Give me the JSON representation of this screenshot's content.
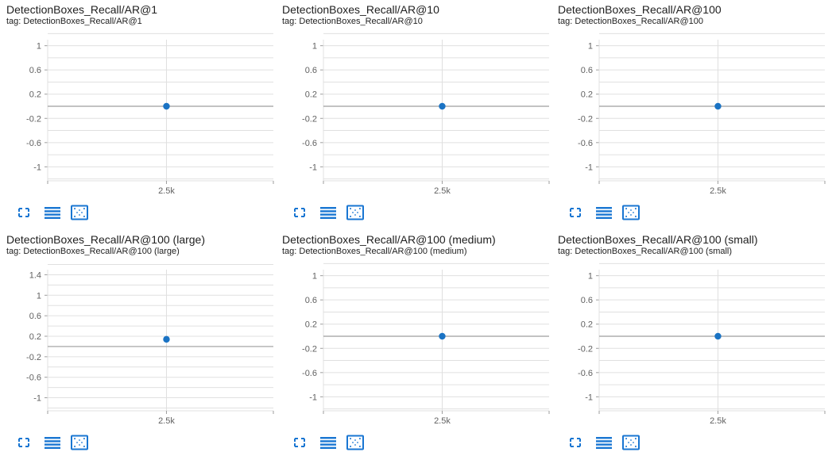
{
  "colors": {
    "grid": "#e0e0e0",
    "zero_line": "#9e9e9e",
    "axis_text": "#616161",
    "point": "#1a73c4",
    "icon": "#1976d2"
  },
  "toolbar": {
    "icons": [
      "fullscreen-icon",
      "data-table-icon",
      "fit-domain-icon"
    ]
  },
  "cards": [
    {
      "title": "DetectionBoxes_Recall/AR@1",
      "tag": "tag: DetectionBoxes_Recall/AR@1"
    },
    {
      "title": "DetectionBoxes_Recall/AR@10",
      "tag": "tag: DetectionBoxes_Recall/AR@10"
    },
    {
      "title": "DetectionBoxes_Recall/AR@100",
      "tag": "tag: DetectionBoxes_Recall/AR@100"
    },
    {
      "title": "DetectionBoxes_Recall/AR@100 (large)",
      "tag": "tag: DetectionBoxes_Recall/AR@100 (large)"
    },
    {
      "title": "DetectionBoxes_Recall/AR@100 (medium)",
      "tag": "tag: DetectionBoxes_Recall/AR@100 (medium)"
    },
    {
      "title": "DetectionBoxes_Recall/AR@100 (small)",
      "tag": "tag: DetectionBoxes_Recall/AR@100 (small)"
    }
  ],
  "chart_data": [
    {
      "type": "scatter",
      "title": "DetectionBoxes_Recall/AR@1",
      "xlabel": "",
      "ylabel": "",
      "x_ticks": [
        "2.5k"
      ],
      "y_ticks": [
        1,
        0.6,
        0.2,
        -0.2,
        -0.6,
        -1
      ],
      "y_tick_labels": [
        "1",
        "0.6",
        "0.2",
        "-0.2",
        "-0.6",
        "-1"
      ],
      "ylim": [
        -1.1,
        1.1
      ],
      "grid": true,
      "points": [
        {
          "x": 2500,
          "y": 0
        }
      ]
    },
    {
      "type": "scatter",
      "title": "DetectionBoxes_Recall/AR@10",
      "xlabel": "",
      "ylabel": "",
      "x_ticks": [
        "2.5k"
      ],
      "y_ticks": [
        1,
        0.6,
        0.2,
        -0.2,
        -0.6,
        -1
      ],
      "y_tick_labels": [
        "1",
        "0.6",
        "0.2",
        "-0.2",
        "-0.6",
        "-1"
      ],
      "ylim": [
        -1.1,
        1.1
      ],
      "grid": true,
      "points": [
        {
          "x": 2500,
          "y": 0
        }
      ]
    },
    {
      "type": "scatter",
      "title": "DetectionBoxes_Recall/AR@100",
      "xlabel": "",
      "ylabel": "",
      "x_ticks": [
        "2.5k"
      ],
      "y_ticks": [
        1,
        0.6,
        0.2,
        -0.2,
        -0.6,
        -1
      ],
      "y_tick_labels": [
        "1",
        "0.6",
        "0.2",
        "-0.2",
        "-0.6",
        "-1"
      ],
      "ylim": [
        -1.1,
        1.1
      ],
      "grid": true,
      "points": [
        {
          "x": 2500,
          "y": 0
        }
      ]
    },
    {
      "type": "scatter",
      "title": "DetectionBoxes_Recall/AR@100 (large)",
      "xlabel": "",
      "ylabel": "",
      "x_ticks": [
        "2.5k"
      ],
      "y_ticks": [
        1.4,
        1,
        0.6,
        0.2,
        -0.2,
        -0.6,
        -1
      ],
      "y_tick_labels": [
        "1.4",
        "1",
        "0.6",
        "0.2",
        "-0.2",
        "-0.6",
        "-1"
      ],
      "ylim": [
        -1.1,
        1.5
      ],
      "grid": true,
      "points": [
        {
          "x": 2500,
          "y": 0.14
        }
      ]
    },
    {
      "type": "scatter",
      "title": "DetectionBoxes_Recall/AR@100 (medium)",
      "xlabel": "",
      "ylabel": "",
      "x_ticks": [
        "2.5k"
      ],
      "y_ticks": [
        1,
        0.6,
        0.2,
        -0.2,
        -0.6,
        -1
      ],
      "y_tick_labels": [
        "1",
        "0.6",
        "0.2",
        "-0.2",
        "-0.6",
        "-1"
      ],
      "ylim": [
        -1.1,
        1.1
      ],
      "grid": true,
      "points": [
        {
          "x": 2500,
          "y": 0
        }
      ]
    },
    {
      "type": "scatter",
      "title": "DetectionBoxes_Recall/AR@100 (small)",
      "xlabel": "",
      "ylabel": "",
      "x_ticks": [
        "2.5k"
      ],
      "y_ticks": [
        1,
        0.6,
        0.2,
        -0.2,
        -0.6,
        -1
      ],
      "y_tick_labels": [
        "1",
        "0.6",
        "0.2",
        "-0.2",
        "-0.6",
        "-1"
      ],
      "ylim": [
        -1.1,
        1.1
      ],
      "grid": true,
      "points": [
        {
          "x": 2500,
          "y": 0
        }
      ]
    }
  ]
}
